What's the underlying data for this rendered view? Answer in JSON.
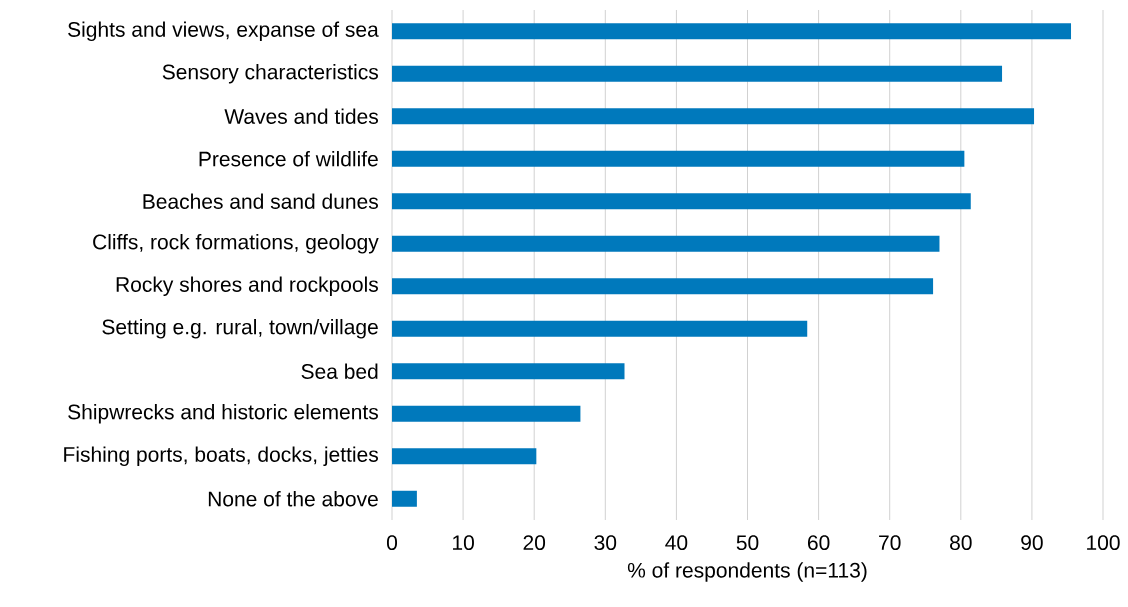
{
  "chart_data": {
    "type": "bar",
    "orientation": "horizontal",
    "xlabel": "% of respondents (n=113)",
    "categories": [
      "Sights and views, expanse of sea",
      "Sensory characteristics",
      "Waves and tides",
      "Presence of wildlife",
      "Beaches and sand dunes",
      "Cliffs, rock formations, geology",
      "Rocky shores and rockpools",
      "Setting e.g. rural, town/village",
      "Sea bed",
      "Shipwrecks and historic elements",
      "Fishing ports, boats, docks, jetties",
      "None of the above"
    ],
    "values": [
      95.5,
      85.8,
      90.3,
      80.5,
      81.4,
      77.0,
      76.1,
      58.4,
      32.7,
      26.5,
      20.3,
      3.5
    ],
    "color": "#0079bc",
    "xlim": [
      0,
      100
    ],
    "xticks": [
      0,
      10,
      20,
      30,
      40,
      50,
      60,
      70,
      80,
      90,
      100
    ],
    "grid": "x"
  }
}
